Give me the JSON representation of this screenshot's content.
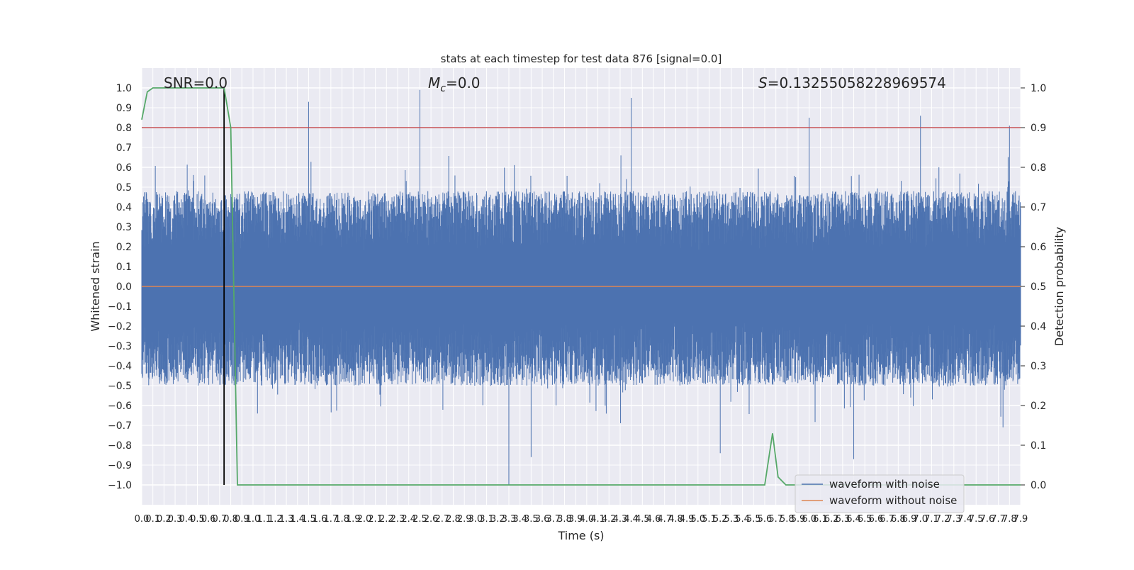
{
  "chart_data": {
    "type": "line",
    "title": "stats at each timestep for test data 876 [signal=0.0]",
    "xlabel": "Time (s)",
    "ylabel_left": "Whitened strain",
    "ylabel_right": "Detection probability",
    "xlim": [
      0.0,
      7.9
    ],
    "ylim_left": [
      -1.1,
      1.1
    ],
    "ylim_right": [
      -0.05,
      1.05
    ],
    "x_ticks": [
      "0.0",
      "0.1",
      "0.2",
      "0.3",
      "0.4",
      "0.5",
      "0.6",
      "0.7",
      "0.8",
      "0.9",
      "1.0",
      "1.1",
      "1.2",
      "1.3",
      "1.4",
      "1.5",
      "1.6",
      "1.7",
      "1.8",
      "1.9",
      "2.0",
      "2.1",
      "2.2",
      "2.3",
      "2.4",
      "2.5",
      "2.6",
      "2.7",
      "2.8",
      "2.9",
      "3.0",
      "3.1",
      "3.2",
      "3.3",
      "3.4",
      "3.5",
      "3.6",
      "3.7",
      "3.8",
      "3.9",
      "4.0",
      "4.1",
      "4.2",
      "4.3",
      "4.4",
      "4.5",
      "4.6",
      "4.7",
      "4.8",
      "4.9",
      "5.0",
      "5.1",
      "5.2",
      "5.3",
      "5.4",
      "5.5",
      "5.6",
      "5.7",
      "5.8",
      "5.9",
      "6.0",
      "6.1",
      "6.2",
      "6.3",
      "6.4",
      "6.5",
      "6.6",
      "6.7",
      "6.8",
      "6.9",
      "7.0",
      "7.1",
      "7.2",
      "7.3",
      "7.4",
      "7.5",
      "7.6",
      "7.7",
      "7.8",
      "7.9"
    ],
    "y_ticks_left": [
      "1.0",
      "0.9",
      "0.8",
      "0.7",
      "0.6",
      "0.5",
      "0.4",
      "0.3",
      "0.2",
      "0.1",
      "0.0",
      "−0.1",
      "−0.2",
      "−0.3",
      "−0.4",
      "−0.5",
      "−0.6",
      "−0.7",
      "−0.8",
      "−0.9",
      "−1.0"
    ],
    "y_ticks_right": [
      "1.0",
      "0.9",
      "0.8",
      "0.7",
      "0.6",
      "0.5",
      "0.4",
      "0.3",
      "0.2",
      "0.1",
      "0.0"
    ],
    "annotations": {
      "snr": "SNR=0.0",
      "mc_symbol": "M",
      "mc_sub": "c",
      "mc_value": "=0.0",
      "s_symbol": "S",
      "s_value": "=0.13255058228969574"
    },
    "threshold": 0.9,
    "marker_x": 0.74,
    "series": [
      {
        "name": "waveform with noise",
        "axis": "left",
        "color": "#4c72b0",
        "note_peaks": {
          "max": [
            [
              2.5,
              0.99
            ],
            [
              1.5,
              0.93
            ],
            [
              4.4,
              0.95
            ],
            [
              6.0,
              0.85
            ],
            [
              7.0,
              0.86
            ],
            [
              7.8,
              0.81
            ]
          ],
          "min": [
            [
              3.3,
              -1.0
            ],
            [
              3.5,
              -0.86
            ],
            [
              5.2,
              -0.84
            ],
            [
              6.4,
              -0.87
            ]
          ]
        }
      },
      {
        "name": "waveform without noise",
        "axis": "left",
        "color": "#dd8452",
        "values_constant": 0.0
      }
    ],
    "detection_probability": {
      "axis": "right",
      "color": "#55a868",
      "x": [
        0.0,
        0.05,
        0.1,
        0.74,
        0.8,
        0.86,
        5.6,
        5.67,
        5.72,
        5.79,
        5.84,
        7.9
      ],
      "y": [
        0.92,
        0.99,
        1.0,
        1.0,
        0.9,
        0.0,
        0.0,
        0.13,
        0.02,
        0.0,
        0.0,
        0.0
      ]
    },
    "legend_position": "lower right",
    "grid": true
  }
}
